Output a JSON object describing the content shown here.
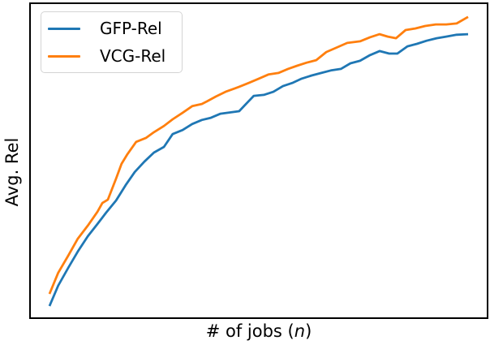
{
  "figure": {
    "background": "#ffffff",
    "frame_color": "#000000",
    "xlabel_prefix": "# of jobs (",
    "xlabel_var": "n",
    "xlabel_suffix": ")",
    "ylabel": "Avg. Rel"
  },
  "legend": {
    "position": "upper-left",
    "items": [
      {
        "label": "GFP-Rel",
        "color": "#1f77b4"
      },
      {
        "label": "VCG-Rel",
        "color": "#ff7f0e"
      }
    ]
  },
  "chart_data": {
    "type": "line",
    "title": "",
    "xlabel": "# of jobs (n)",
    "ylabel": "Avg. Rel",
    "grid": false,
    "legend_position": "upper left",
    "axes_note": "No tick marks or tick labels are shown on either axis; point coordinates below are fractions of the axes box, origin at bottom-left (x: 0=left frame, 1=right frame; y: 0=bottom frame, 1=top frame).",
    "series": [
      {
        "name": "GFP-Rel",
        "color": "#1f77b4",
        "points": [
          [
            0.041,
            0.036
          ],
          [
            0.06,
            0.101
          ],
          [
            0.082,
            0.158
          ],
          [
            0.103,
            0.21
          ],
          [
            0.125,
            0.259
          ],
          [
            0.146,
            0.298
          ],
          [
            0.165,
            0.334
          ],
          [
            0.187,
            0.373
          ],
          [
            0.208,
            0.422
          ],
          [
            0.228,
            0.464
          ],
          [
            0.249,
            0.497
          ],
          [
            0.27,
            0.526
          ],
          [
            0.292,
            0.544
          ],
          [
            0.311,
            0.585
          ],
          [
            0.333,
            0.598
          ],
          [
            0.354,
            0.617
          ],
          [
            0.375,
            0.63
          ],
          [
            0.395,
            0.637
          ],
          [
            0.416,
            0.65
          ],
          [
            0.457,
            0.658
          ],
          [
            0.479,
            0.692
          ],
          [
            0.489,
            0.707
          ],
          [
            0.511,
            0.71
          ],
          [
            0.532,
            0.72
          ],
          [
            0.553,
            0.738
          ],
          [
            0.575,
            0.749
          ],
          [
            0.594,
            0.762
          ],
          [
            0.616,
            0.772
          ],
          [
            0.637,
            0.78
          ],
          [
            0.658,
            0.788
          ],
          [
            0.68,
            0.793
          ],
          [
            0.701,
            0.811
          ],
          [
            0.722,
            0.819
          ],
          [
            0.744,
            0.837
          ],
          [
            0.765,
            0.85
          ],
          [
            0.786,
            0.842
          ],
          [
            0.804,
            0.842
          ],
          [
            0.826,
            0.865
          ],
          [
            0.847,
            0.873
          ],
          [
            0.868,
            0.883
          ],
          [
            0.89,
            0.891
          ],
          [
            0.911,
            0.896
          ],
          [
            0.934,
            0.902
          ],
          [
            0.959,
            0.904
          ]
        ]
      },
      {
        "name": "VCG-Rel",
        "color": "#ff7f0e",
        "points": [
          [
            0.041,
            0.075
          ],
          [
            0.06,
            0.142
          ],
          [
            0.082,
            0.197
          ],
          [
            0.103,
            0.251
          ],
          [
            0.125,
            0.293
          ],
          [
            0.146,
            0.337
          ],
          [
            0.157,
            0.365
          ],
          [
            0.169,
            0.376
          ],
          [
            0.187,
            0.443
          ],
          [
            0.199,
            0.49
          ],
          [
            0.212,
            0.521
          ],
          [
            0.231,
            0.56
          ],
          [
            0.253,
            0.573
          ],
          [
            0.27,
            0.591
          ],
          [
            0.292,
            0.611
          ],
          [
            0.311,
            0.632
          ],
          [
            0.333,
            0.653
          ],
          [
            0.354,
            0.674
          ],
          [
            0.375,
            0.681
          ],
          [
            0.386,
            0.689
          ],
          [
            0.406,
            0.705
          ],
          [
            0.427,
            0.72
          ],
          [
            0.448,
            0.731
          ],
          [
            0.457,
            0.736
          ],
          [
            0.479,
            0.749
          ],
          [
            0.5,
            0.762
          ],
          [
            0.521,
            0.775
          ],
          [
            0.543,
            0.78
          ],
          [
            0.564,
            0.793
          ],
          [
            0.584,
            0.803
          ],
          [
            0.605,
            0.813
          ],
          [
            0.626,
            0.821
          ],
          [
            0.648,
            0.847
          ],
          [
            0.669,
            0.86
          ],
          [
            0.694,
            0.876
          ],
          [
            0.722,
            0.881
          ],
          [
            0.744,
            0.894
          ],
          [
            0.765,
            0.904
          ],
          [
            0.783,
            0.896
          ],
          [
            0.801,
            0.891
          ],
          [
            0.822,
            0.917
          ],
          [
            0.843,
            0.922
          ],
          [
            0.865,
            0.93
          ],
          [
            0.888,
            0.935
          ],
          [
            0.911,
            0.935
          ],
          [
            0.934,
            0.938
          ],
          [
            0.959,
            0.959
          ]
        ]
      }
    ]
  }
}
